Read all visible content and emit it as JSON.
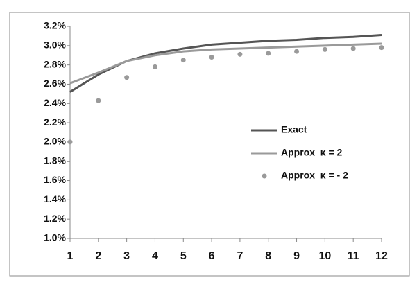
{
  "chart_data": {
    "type": "line",
    "x": [
      1,
      2,
      3,
      4,
      5,
      6,
      7,
      8,
      9,
      10,
      11,
      12
    ],
    "xlim": [
      1,
      12
    ],
    "xticks": [
      1,
      2,
      3,
      4,
      5,
      6,
      7,
      8,
      9,
      10,
      11,
      12
    ],
    "ylim": [
      1.0,
      3.2
    ],
    "yticks": [
      {
        "value": 1.0,
        "label": "1.0%"
      },
      {
        "value": 1.2,
        "label": "1.2%"
      },
      {
        "value": 1.4,
        "label": "1.4%"
      },
      {
        "value": 1.6,
        "label": "1.6%"
      },
      {
        "value": 1.8,
        "label": "1.8%"
      },
      {
        "value": 2.0,
        "label": "2.0%"
      },
      {
        "value": 2.2,
        "label": "2.2%"
      },
      {
        "value": 2.4,
        "label": "2.4%"
      },
      {
        "value": 2.6,
        "label": "2.6%"
      },
      {
        "value": 2.8,
        "label": "2.8%"
      },
      {
        "value": 3.0,
        "label": "3.0%"
      },
      {
        "value": 3.2,
        "label": "3.2%"
      }
    ],
    "grid": false,
    "series": [
      {
        "name": "Exact",
        "color": "#555555",
        "mode": "line",
        "values": [
          2.52,
          2.7,
          2.84,
          2.92,
          2.97,
          3.01,
          3.03,
          3.05,
          3.06,
          3.08,
          3.09,
          3.11
        ]
      },
      {
        "name": "Approx  κ = 2",
        "color": "#9a9a9a",
        "mode": "line",
        "values": [
          2.61,
          2.72,
          2.84,
          2.9,
          2.94,
          2.96,
          2.97,
          2.98,
          2.99,
          3.0,
          3.01,
          3.02
        ]
      },
      {
        "name": "Approx  κ = - 2",
        "color": "#9a9a9a",
        "mode": "markers",
        "values": [
          2.0,
          2.43,
          2.67,
          2.78,
          2.85,
          2.88,
          2.91,
          2.92,
          2.94,
          2.96,
          2.97,
          2.98
        ]
      }
    ]
  }
}
